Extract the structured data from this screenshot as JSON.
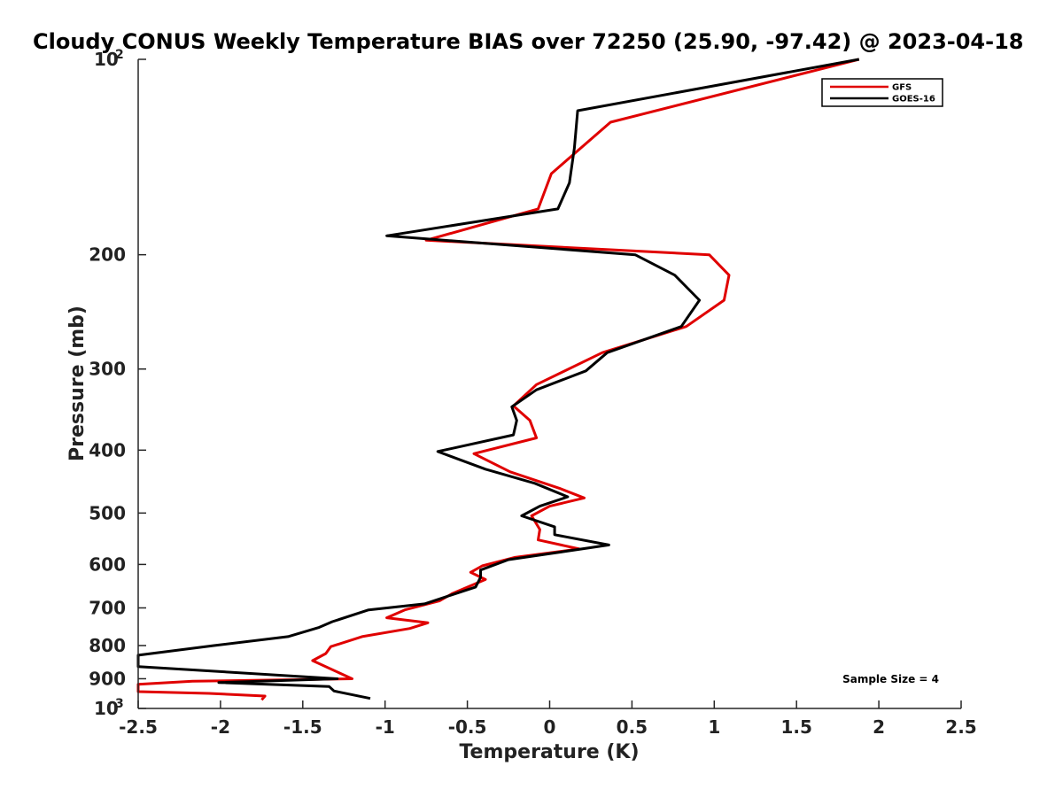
{
  "chart_data": {
    "type": "line",
    "title": "Cloudy CONUS Weekly Temperature BIAS over 72250 (25.90, -97.42) @ 2023-04-18",
    "xlabel": "Temperature (K)",
    "ylabel": "Pressure (mb)",
    "xlim": [
      -2.5,
      2.5
    ],
    "ylim": [
      1000,
      100
    ],
    "y_scale": "log",
    "x_ticks": [
      "-2.5",
      "-2",
      "-1.5",
      "-1",
      "-0.5",
      "0",
      "0.5",
      "1",
      "1.5",
      "2",
      "2.5"
    ],
    "y_ticks": [
      {
        "value": 100,
        "base": "10",
        "exp": "2"
      },
      {
        "value": 200,
        "label": "200"
      },
      {
        "value": 300,
        "label": "300"
      },
      {
        "value": 400,
        "label": "400"
      },
      {
        "value": 500,
        "label": "500"
      },
      {
        "value": 600,
        "label": "600"
      },
      {
        "value": 700,
        "label": "700"
      },
      {
        "value": 800,
        "label": "800"
      },
      {
        "value": 900,
        "label": "900"
      },
      {
        "value": 1000,
        "base": "10",
        "exp": "3"
      }
    ],
    "legend_position": "top-right",
    "annotation": "Sample Size = 4",
    "series": [
      {
        "name": "GFS",
        "color": "#e00000",
        "points": [
          [
            1.88,
            100
          ],
          [
            0.37,
            125
          ],
          [
            0.01,
            150
          ],
          [
            -0.07,
            170
          ],
          [
            -0.75,
            190
          ],
          [
            0.97,
            200
          ],
          [
            1.09,
            215
          ],
          [
            1.06,
            235
          ],
          [
            0.83,
            258
          ],
          [
            0.32,
            283
          ],
          [
            -0.08,
            317
          ],
          [
            -0.22,
            342
          ],
          [
            -0.12,
            360
          ],
          [
            -0.08,
            383
          ],
          [
            -0.46,
            405
          ],
          [
            -0.24,
            432
          ],
          [
            0.06,
            458
          ],
          [
            0.21,
            474
          ],
          [
            0.0,
            488
          ],
          [
            -0.11,
            505
          ],
          [
            -0.06,
            530
          ],
          [
            -0.07,
            550
          ],
          [
            0.18,
            568
          ],
          [
            -0.21,
            585
          ],
          [
            -0.41,
            603
          ],
          [
            -0.48,
            617
          ],
          [
            -0.39,
            633
          ],
          [
            -0.59,
            665
          ],
          [
            -0.67,
            683
          ],
          [
            -0.88,
            705
          ],
          [
            -0.99,
            725
          ],
          [
            -0.74,
            738
          ],
          [
            -0.85,
            753
          ],
          [
            -1.14,
            775
          ],
          [
            -1.33,
            803
          ],
          [
            -1.36,
            823
          ],
          [
            -1.44,
            844
          ],
          [
            -1.2,
            900
          ],
          [
            -2.17,
            908
          ],
          [
            -2.5,
            918
          ],
          [
            -2.5,
            942
          ],
          [
            -2.07,
            948
          ],
          [
            -1.73,
            957
          ],
          [
            -1.75,
            970
          ]
        ]
      },
      {
        "name": "GOES-16",
        "color": "#000000",
        "points": [
          [
            1.88,
            100
          ],
          [
            0.17,
            120
          ],
          [
            0.15,
            137
          ],
          [
            0.12,
            155
          ],
          [
            0.05,
            170
          ],
          [
            -0.99,
            187
          ],
          [
            0.52,
            200
          ],
          [
            0.76,
            215
          ],
          [
            0.91,
            235
          ],
          [
            0.8,
            258
          ],
          [
            0.35,
            283
          ],
          [
            0.22,
            302
          ],
          [
            -0.08,
            323
          ],
          [
            -0.23,
            343
          ],
          [
            -0.2,
            360
          ],
          [
            -0.22,
            379
          ],
          [
            -0.68,
            402
          ],
          [
            -0.39,
            428
          ],
          [
            -0.09,
            450
          ],
          [
            0.11,
            472
          ],
          [
            -0.06,
            488
          ],
          [
            -0.17,
            505
          ],
          [
            0.03,
            525
          ],
          [
            0.03,
            540
          ],
          [
            0.36,
            560
          ],
          [
            -0.25,
            590
          ],
          [
            -0.42,
            612
          ],
          [
            -0.42,
            628
          ],
          [
            -0.45,
            650
          ],
          [
            -0.76,
            690
          ],
          [
            -1.1,
            705
          ],
          [
            -1.32,
            735
          ],
          [
            -1.4,
            750
          ],
          [
            -1.59,
            775
          ],
          [
            -2.04,
            800
          ],
          [
            -2.5,
            828
          ],
          [
            -2.5,
            862
          ],
          [
            -1.29,
            900
          ],
          [
            -2.01,
            912
          ],
          [
            -1.34,
            925
          ],
          [
            -1.31,
            940
          ],
          [
            -1.09,
            965
          ]
        ]
      }
    ]
  }
}
